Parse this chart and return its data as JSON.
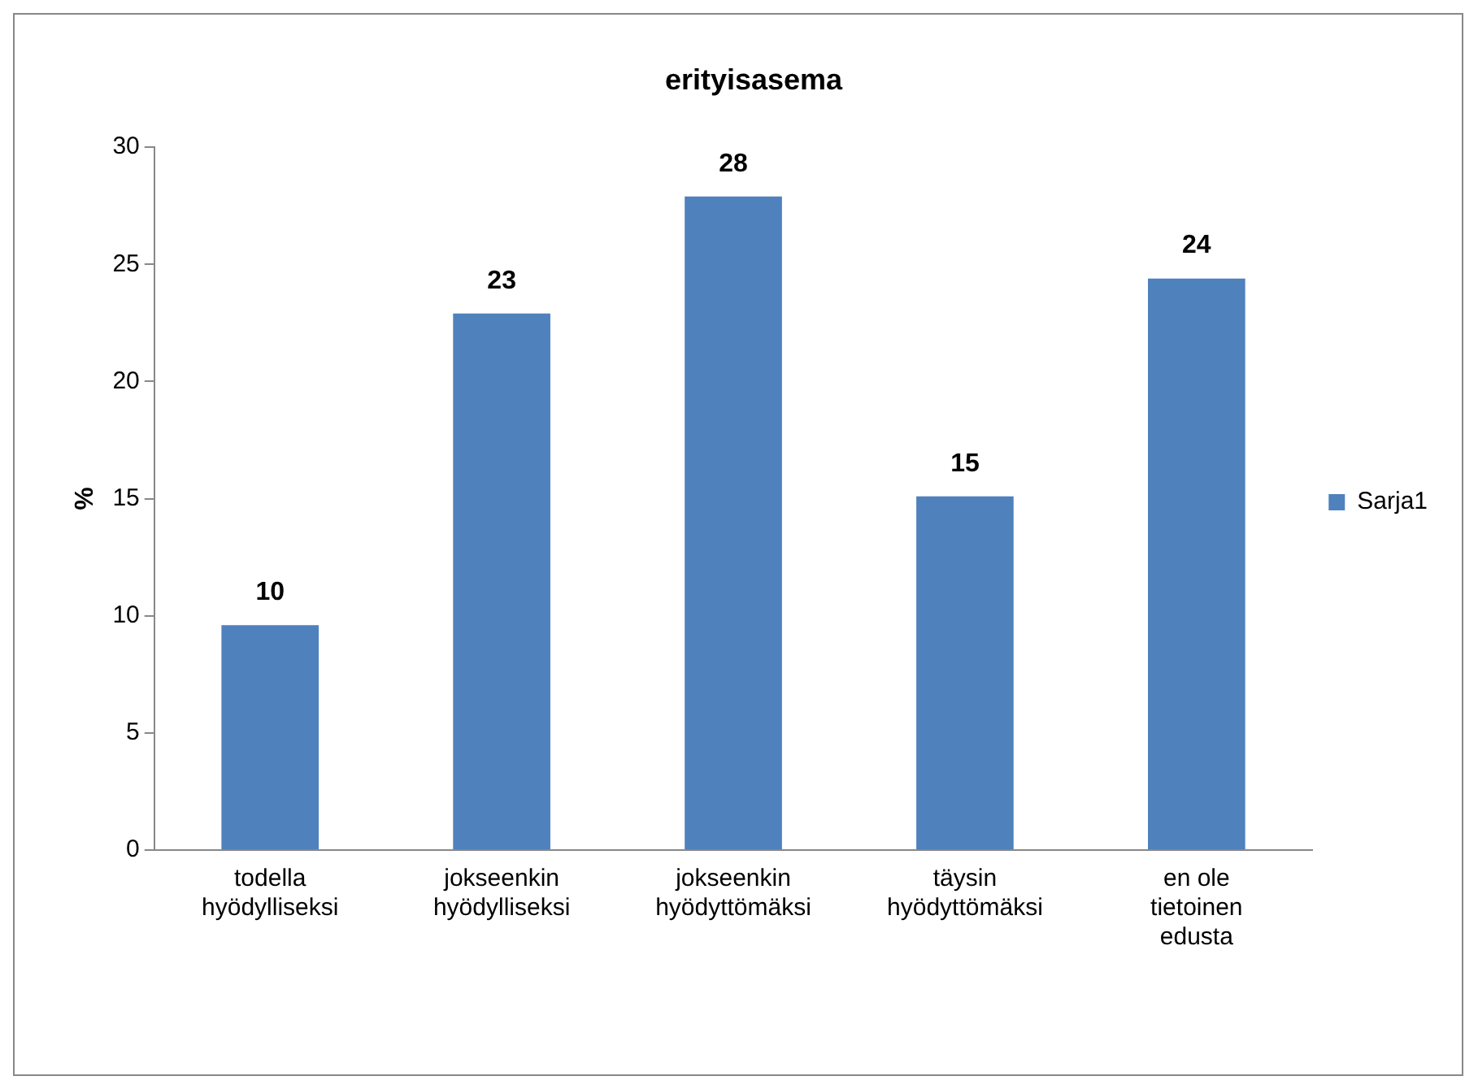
{
  "chart_data": {
    "type": "bar",
    "title": "erityisasema",
    "ylabel": "%",
    "categories": [
      "todella hyödylliseksi",
      "jokseenkin hyödylliseksi",
      "jokseenkin hyödyttömäksi",
      "täysin hyödyttömäksi",
      "en ole tietoinen edusta"
    ],
    "series": [
      {
        "name": "Sarja1",
        "color": "#4f81bd",
        "values": [
          9.6,
          22.9,
          27.9,
          15.1,
          24.4
        ],
        "value_labels": [
          "10",
          "23",
          "28",
          "15",
          "24"
        ]
      }
    ],
    "ylim": [
      0,
      30
    ],
    "yticks": [
      0,
      5,
      10,
      15,
      20,
      25,
      30
    ],
    "grid": false,
    "legend": "right"
  }
}
